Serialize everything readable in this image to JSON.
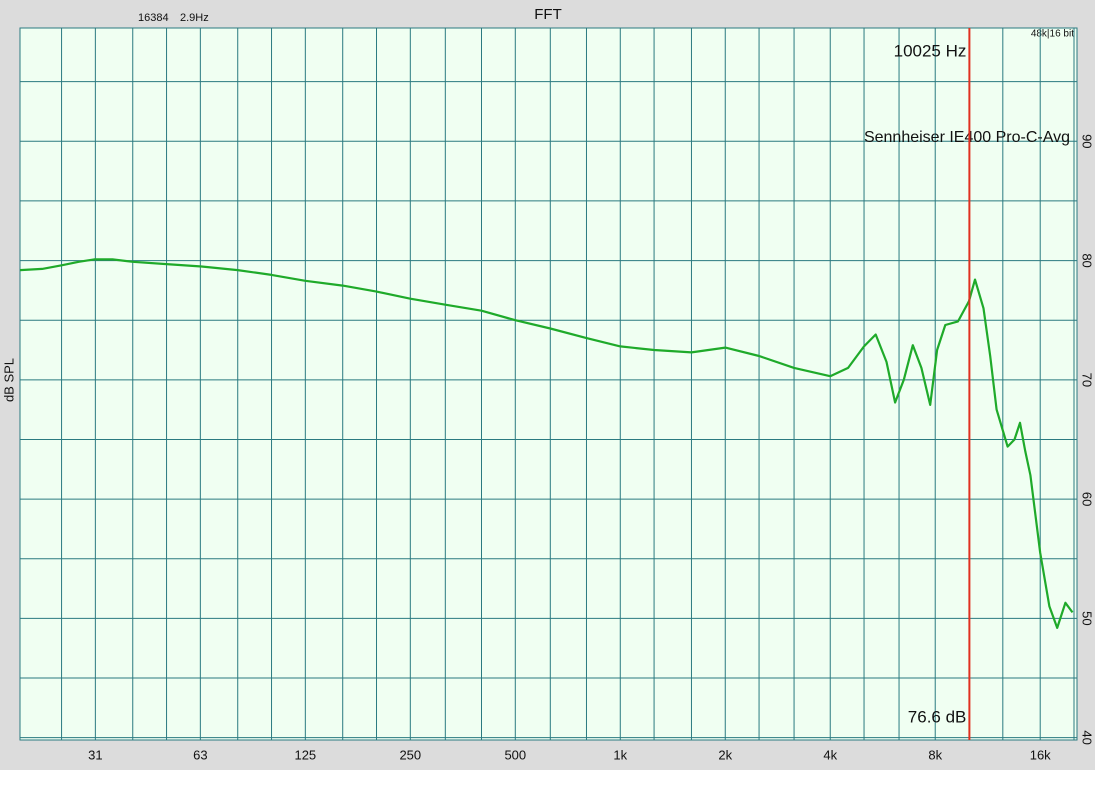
{
  "chart_data": {
    "type": "line",
    "title": "FFT",
    "fft_size": "16384",
    "resolution": "2.9Hz",
    "format": "48k|16 bit",
    "ylabel": "dB SPL",
    "xscale": "log",
    "xlim": [
      19,
      20400
    ],
    "ylim": [
      39.8,
      99.5
    ],
    "xticks": [
      {
        "value": 31.25,
        "label": "31"
      },
      {
        "value": 62.5,
        "label": "63"
      },
      125,
      250,
      500,
      {
        "value": 1000,
        "label": "1k"
      },
      {
        "value": 2000,
        "label": "2k"
      },
      {
        "value": 4000,
        "label": "4k"
      },
      {
        "value": 8000,
        "label": "8k"
      },
      {
        "value": 16000,
        "label": "16k"
      }
    ],
    "x_minor_ticks": [
      25,
      40,
      50,
      80,
      100,
      160,
      200,
      315,
      400,
      630,
      800,
      1250,
      1600,
      2500,
      3150,
      5000,
      6300,
      10000,
      12500,
      20000
    ],
    "yticks": [
      40,
      50,
      60,
      70,
      80,
      90
    ],
    "y_minor_ticks": [
      45,
      55,
      65,
      75,
      85,
      95
    ],
    "grid": true,
    "x": [
      19,
      22,
      25,
      28,
      31,
      35,
      40,
      50,
      63,
      80,
      100,
      125,
      160,
      200,
      250,
      315,
      400,
      500,
      630,
      800,
      1000,
      1250,
      1600,
      2000,
      2500,
      3150,
      4000,
      4500,
      5000,
      5400,
      5800,
      6140,
      6500,
      6900,
      7300,
      7740,
      8100,
      8550,
      9300,
      10000,
      10400,
      11000,
      11500,
      12000,
      12900,
      13500,
      14000,
      14500,
      15000,
      16000,
      17000,
      17900,
      18900,
      19800
    ],
    "series": [
      {
        "name": "Sennheiser IE400 Pro-C-Avg",
        "color": "#1faa2a",
        "values": [
          79.2,
          79.3,
          79.6,
          79.9,
          80.1,
          80.1,
          79.9,
          79.7,
          79.5,
          79.2,
          78.8,
          78.3,
          77.9,
          77.4,
          76.8,
          76.3,
          75.8,
          75.0,
          74.3,
          73.5,
          72.8,
          72.5,
          72.3,
          72.7,
          72.0,
          71.0,
          70.3,
          71.0,
          72.8,
          73.8,
          71.5,
          68.1,
          70.0,
          72.9,
          71.0,
          67.9,
          72.5,
          74.6,
          74.9,
          76.6,
          78.4,
          76.0,
          72.0,
          67.5,
          64.4,
          65.0,
          66.4,
          64.0,
          62.0,
          55.5,
          51.0,
          49.2,
          51.3,
          50.5
        ]
      }
    ],
    "cursor": {
      "x": 10025,
      "x_label": "10025 Hz",
      "value": 76.6,
      "value_label": "76.6 dB",
      "color": "#e03020"
    }
  }
}
